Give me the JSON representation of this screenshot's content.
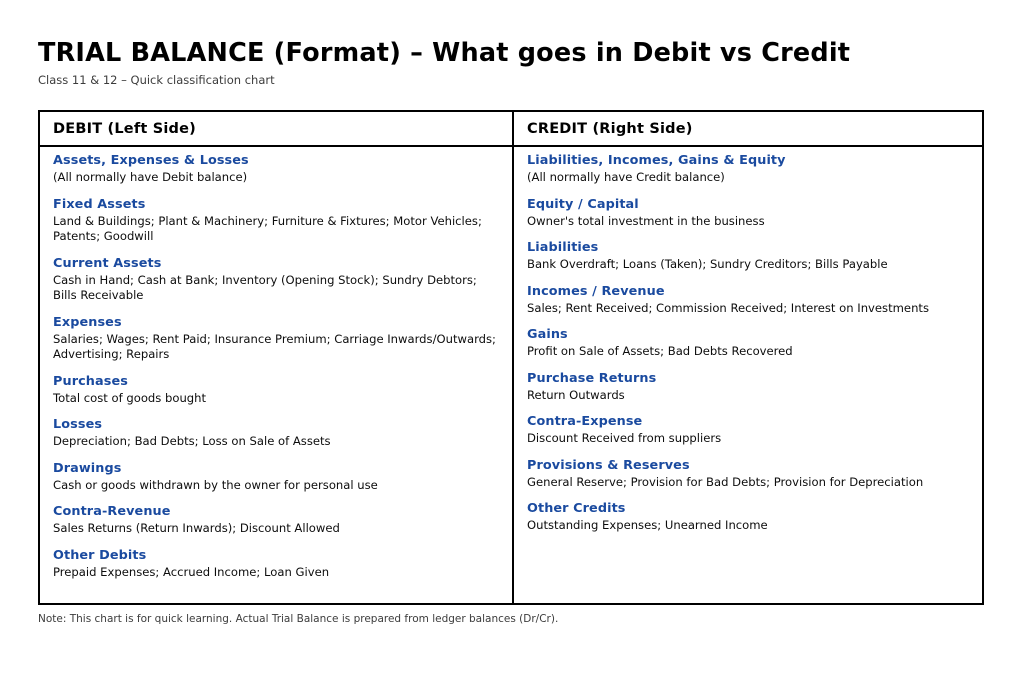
{
  "page": {
    "title": "TRIAL BALANCE (Format) – What goes in Debit vs Credit",
    "subtitle": "Class 11 & 12 – Quick classification chart",
    "note": "Note: This chart is for quick learning. Actual Trial Balance is prepared from ledger balances (Dr/Cr)."
  },
  "colors": {
    "heading_blue": "#1a4a9f",
    "border": "#000000",
    "body_text": "#0d0d0d",
    "muted_text": "#3c3c3c",
    "background": "#ffffff"
  },
  "table": {
    "columns": [
      {
        "header": "DEBIT (Left Side)",
        "sections": [
          {
            "heading": "Assets, Expenses & Losses",
            "detail": "(All normally have Debit balance)"
          },
          {
            "heading": "Fixed Assets",
            "detail": "Land & Buildings; Plant & Machinery; Furniture & Fixtures; Motor Vehicles; Patents; Goodwill"
          },
          {
            "heading": "Current Assets",
            "detail": "Cash in Hand; Cash at Bank; Inventory (Opening Stock); Sundry Debtors; Bills Receivable"
          },
          {
            "heading": "Expenses",
            "detail": "Salaries; Wages; Rent Paid; Insurance Premium; Carriage Inwards/Outwards; Advertising; Repairs"
          },
          {
            "heading": "Purchases",
            "detail": "Total cost of goods bought"
          },
          {
            "heading": "Losses",
            "detail": "Depreciation; Bad Debts; Loss on Sale of Assets"
          },
          {
            "heading": "Drawings",
            "detail": "Cash or goods withdrawn by the owner for personal use"
          },
          {
            "heading": "Contra-Revenue",
            "detail": "Sales Returns (Return Inwards); Discount Allowed"
          },
          {
            "heading": "Other Debits",
            "detail": "Prepaid Expenses; Accrued Income; Loan Given"
          }
        ]
      },
      {
        "header": "CREDIT (Right Side)",
        "sections": [
          {
            "heading": "Liabilities, Incomes, Gains & Equity",
            "detail": "(All normally have Credit balance)"
          },
          {
            "heading": "Equity / Capital",
            "detail": "Owner's total investment in the business"
          },
          {
            "heading": "Liabilities",
            "detail": "Bank Overdraft; Loans (Taken); Sundry Creditors; Bills Payable"
          },
          {
            "heading": "Incomes / Revenue",
            "detail": "Sales; Rent Received; Commission Received; Interest on Investments"
          },
          {
            "heading": "Gains",
            "detail": "Profit on Sale of Assets; Bad Debts Recovered"
          },
          {
            "heading": "Purchase Returns",
            "detail": "Return Outwards"
          },
          {
            "heading": "Contra-Expense",
            "detail": "Discount Received from suppliers"
          },
          {
            "heading": "Provisions & Reserves",
            "detail": "General Reserve; Provision for Bad Debts; Provision for Depreciation"
          },
          {
            "heading": "Other Credits",
            "detail": "Outstanding Expenses; Unearned Income"
          }
        ]
      }
    ]
  }
}
